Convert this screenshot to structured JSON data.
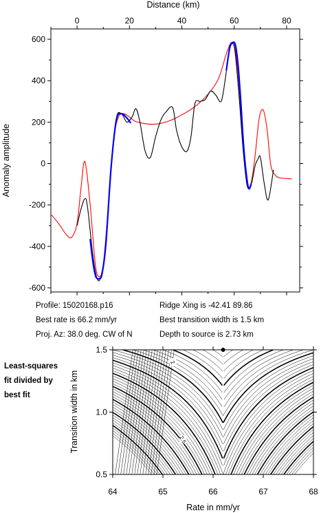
{
  "chart_data": [
    {
      "type": "line",
      "xlabel": "Distance (km)",
      "ylabel": "Anomaly amplitude",
      "xlim": [
        -10,
        85
      ],
      "ylim": [
        -620,
        650
      ],
      "xticks": [
        0,
        20,
        40,
        60,
        80
      ],
      "yticks": [
        -600,
        -400,
        -200,
        0,
        200,
        400,
        600
      ],
      "series": [
        {
          "color": "#ff0000",
          "x": [
            -10,
            -7,
            -4,
            -2,
            0,
            1.5,
            3,
            5,
            7,
            8.5,
            10,
            12,
            14,
            16,
            18,
            20,
            22,
            25,
            28,
            31,
            35,
            40,
            45,
            50,
            54,
            57,
            59,
            60.5,
            62,
            63.5,
            65,
            66.5,
            68,
            69.5,
            71,
            72.5,
            74,
            76,
            78,
            80,
            82
          ],
          "y": [
            -245,
            -290,
            -345,
            -355,
            -290,
            -120,
            10,
            -200,
            -490,
            -545,
            -490,
            -200,
            120,
            230,
            240,
            225,
            205,
            195,
            190,
            192,
            205,
            235,
            275,
            335,
            410,
            530,
            585,
            540,
            350,
            60,
            -105,
            -90,
            40,
            215,
            260,
            170,
            -10,
            -60,
            -70,
            -72,
            -75
          ]
        },
        {
          "color": "#000000",
          "x": [
            0,
            1.5,
            3,
            4,
            6,
            7.5,
            9,
            11,
            13,
            15,
            17,
            19,
            21,
            22.5,
            24,
            26,
            28,
            30,
            32,
            34,
            36.5,
            38,
            40,
            42,
            43.5,
            45,
            47,
            49,
            51,
            53,
            55,
            56.5,
            58,
            59.5,
            60.5,
            62,
            63.5,
            65,
            66.5,
            68,
            69,
            70,
            71.5,
            73,
            75
          ],
          "y": [
            -300,
            -220,
            -170,
            -210,
            -440,
            -550,
            -550,
            -390,
            -10,
            220,
            240,
            200,
            225,
            265,
            200,
            60,
            30,
            130,
            210,
            250,
            270,
            160,
            80,
            60,
            130,
            290,
            300,
            310,
            350,
            330,
            300,
            400,
            540,
            580,
            520,
            300,
            50,
            -110,
            -100,
            -10,
            20,
            30,
            -100,
            -175,
            -30
          ]
        },
        {
          "color": "#0000ff",
          "x": [
            5,
            6,
            7,
            7.7,
            8.5,
            9.5,
            11,
            13,
            15,
            17,
            19,
            20.5
          ],
          "y": [
            -365,
            -470,
            -540,
            -555,
            -555,
            -535,
            -390,
            -20,
            210,
            240,
            220,
            195
          ]
        },
        {
          "color": "#0000ff",
          "x": [
            57,
            58.3,
            59.5,
            60.5,
            61.5,
            62.5,
            63.5,
            64.5,
            65.5,
            66.5
          ],
          "y": [
            450,
            560,
            585,
            570,
            470,
            300,
            100,
            -40,
            -120,
            -100
          ]
        }
      ]
    },
    {
      "type": "contour",
      "xlabel": "Rate in mm/yr",
      "ylabel": "Transition width in km",
      "xlim": [
        64,
        68
      ],
      "ylim": [
        0.5,
        1.5
      ],
      "xticks": [
        64,
        65,
        66,
        67,
        68
      ],
      "yticks": [
        0.5,
        1.0,
        1.5
      ],
      "contour_labels": [
        "2",
        "2.5"
      ],
      "best_fit_point": {
        "x": 66.2,
        "y": 1.5
      }
    }
  ],
  "info": {
    "profile": "Profile: 15020168.p16",
    "best_rate": "Best rate is 66.2 mm/yr",
    "proj_az": "Proj. Az: 38.0 deg. CW of N",
    "ridge_xing": "Ridge Xing is -42.41  89.86",
    "best_width": "Best transition width is 1.5 km",
    "depth": "Depth to source is    2.73 km"
  },
  "note": [
    "Least-squares",
    "fit divided by",
    "best fit"
  ]
}
